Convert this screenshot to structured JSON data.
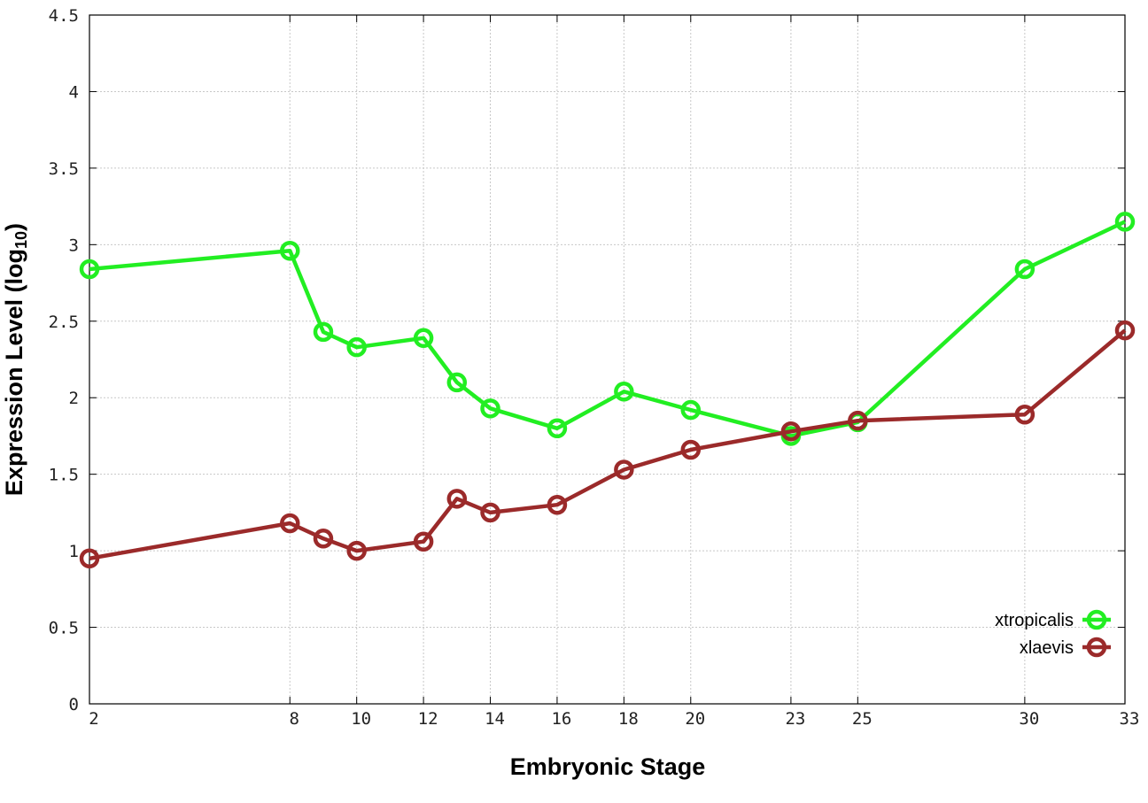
{
  "chart_data": {
    "type": "line",
    "xlabel": "Embryonic Stage",
    "ylabel": {
      "main": "Expression Level (log",
      "subscript": "10",
      "close": ")"
    },
    "x_ticks": [
      2,
      8,
      10,
      12,
      14,
      16,
      18,
      20,
      23,
      25,
      30,
      33
    ],
    "y_ticks": [
      "0",
      "0.5",
      "1",
      "1.5",
      "2",
      "2.5",
      "3",
      "3.5",
      "4",
      "4.5"
    ],
    "xlim": [
      2,
      33
    ],
    "ylim": [
      0,
      4.5
    ],
    "grid": true,
    "legend_position": "bottom-right",
    "series": [
      {
        "name": "xtropicalis",
        "color": "#22ee22",
        "points": [
          [
            2,
            2.84
          ],
          [
            8,
            2.96
          ],
          [
            9,
            2.43
          ],
          [
            10,
            2.33
          ],
          [
            12,
            2.39
          ],
          [
            13,
            2.1
          ],
          [
            14,
            1.93
          ],
          [
            16,
            1.8
          ],
          [
            18,
            2.04
          ],
          [
            20,
            1.92
          ],
          [
            23,
            1.75
          ],
          [
            25,
            1.84
          ],
          [
            30,
            2.84
          ],
          [
            33,
            3.15
          ]
        ]
      },
      {
        "name": "xlaevis",
        "color": "#9b2a2a",
        "points": [
          [
            2,
            0.95
          ],
          [
            8,
            1.18
          ],
          [
            9,
            1.08
          ],
          [
            10,
            1.0
          ],
          [
            12,
            1.06
          ],
          [
            13,
            1.34
          ],
          [
            14,
            1.25
          ],
          [
            16,
            1.3
          ],
          [
            18,
            1.53
          ],
          [
            20,
            1.66
          ],
          [
            23,
            1.78
          ],
          [
            25,
            1.85
          ],
          [
            30,
            1.89
          ],
          [
            33,
            2.44
          ]
        ]
      }
    ]
  }
}
